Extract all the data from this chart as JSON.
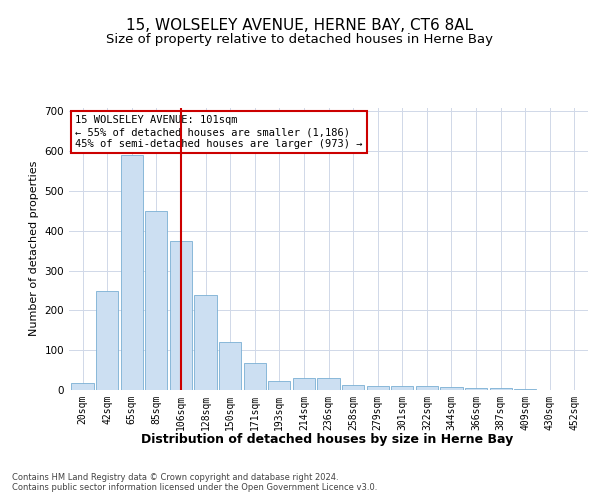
{
  "title": "15, WOLSELEY AVENUE, HERNE BAY, CT6 8AL",
  "subtitle": "Size of property relative to detached houses in Herne Bay",
  "xlabel": "Distribution of detached houses by size in Herne Bay",
  "ylabel": "Number of detached properties",
  "bar_labels": [
    "20sqm",
    "42sqm",
    "65sqm",
    "85sqm",
    "106sqm",
    "128sqm",
    "150sqm",
    "171sqm",
    "193sqm",
    "214sqm",
    "236sqm",
    "258sqm",
    "279sqm",
    "301sqm",
    "322sqm",
    "344sqm",
    "366sqm",
    "387sqm",
    "409sqm",
    "430sqm",
    "452sqm"
  ],
  "bar_values": [
    18,
    248,
    590,
    450,
    375,
    238,
    120,
    67,
    22,
    30,
    30,
    13,
    11,
    10,
    9,
    7,
    6,
    5,
    2,
    1,
    0
  ],
  "bar_color": "#ccdff2",
  "bar_edge_color": "#7aafd4",
  "marker_index": 4,
  "marker_color": "#cc0000",
  "annotation_text": "15 WOLSELEY AVENUE: 101sqm\n← 55% of detached houses are smaller (1,186)\n45% of semi-detached houses are larger (973) →",
  "annotation_box_color": "#ffffff",
  "annotation_box_edge_color": "#cc0000",
  "ylim": [
    0,
    710
  ],
  "yticks": [
    0,
    100,
    200,
    300,
    400,
    500,
    600,
    700
  ],
  "footer_text": "Contains HM Land Registry data © Crown copyright and database right 2024.\nContains public sector information licensed under the Open Government Licence v3.0.",
  "background_color": "#ffffff",
  "grid_color": "#d0d8e8",
  "title_fontsize": 11,
  "subtitle_fontsize": 9.5,
  "ylabel_fontsize": 8,
  "xlabel_fontsize": 9,
  "tick_fontsize": 7,
  "annotation_fontsize": 7.5,
  "footer_fontsize": 6
}
